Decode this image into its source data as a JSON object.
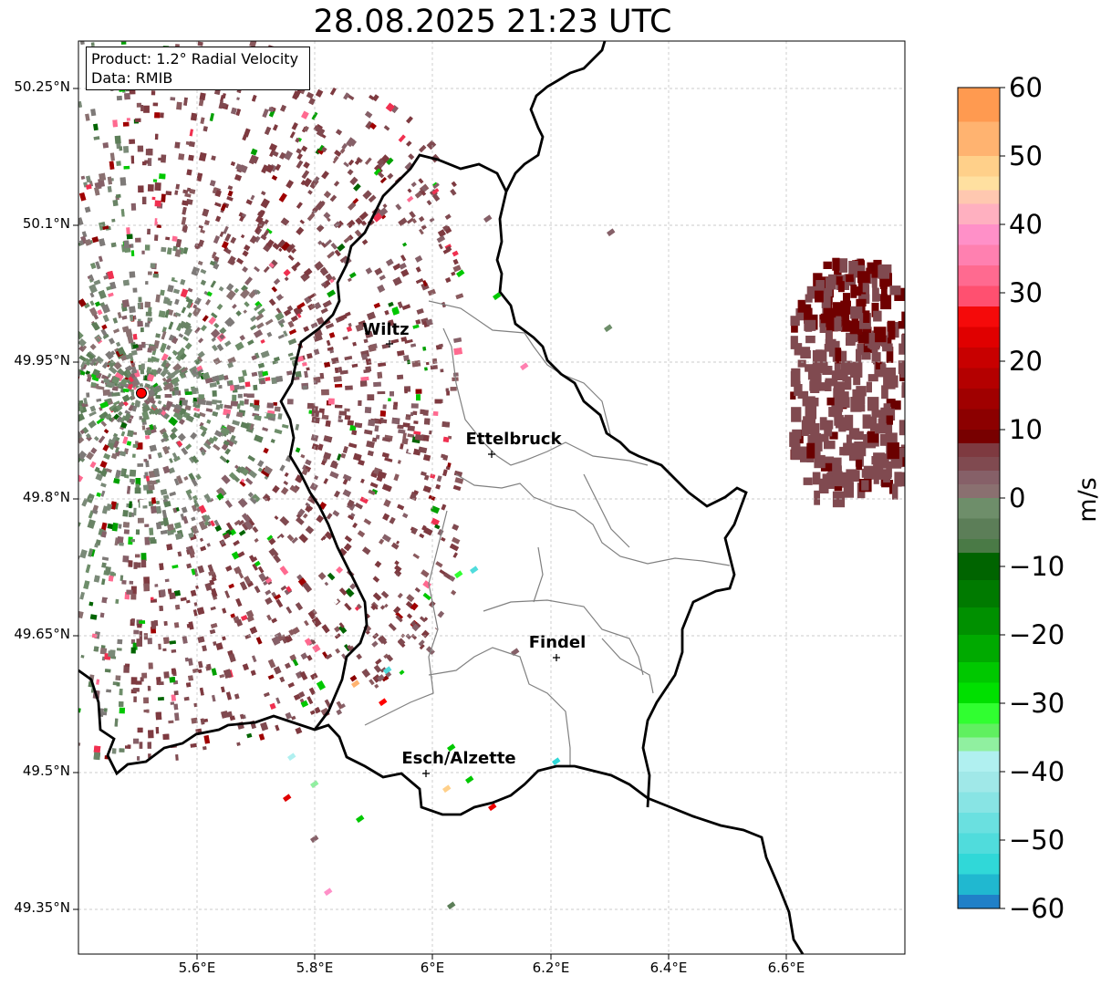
{
  "title": "28.08.2025 21:23 UTC",
  "info_box": {
    "product_line": "Product: 1.2° Radial Velocity",
    "data_line": "Data: RMIB"
  },
  "latitude_labels": [
    "50.25°N",
    "50.1°N",
    "49.95°N",
    "49.8°N",
    "49.65°N",
    "49.5°N",
    "49.35°N"
  ],
  "longitude_labels": [
    "5.6°E",
    "5.8°E",
    "6°E",
    "6.2°E",
    "6.4°E",
    "6.6°E"
  ],
  "cities": [
    {
      "name": "Wiltz"
    },
    {
      "name": "Ettelbruck"
    },
    {
      "name": "Findel"
    },
    {
      "name": "Esch/Alzette"
    }
  ],
  "colorbar": {
    "unit": "m/s",
    "ticks": [
      "60",
      "50",
      "40",
      "30",
      "20",
      "10",
      "0",
      "−10",
      "−20",
      "−30",
      "−40",
      "−50",
      "−60"
    ],
    "min": -60,
    "max": 60
  },
  "colors": {
    "border": "#000000",
    "canton_line": "#808080",
    "grid": "#bbbbbb",
    "radar_site": "#ff0000"
  },
  "icons": [
    "radar-site-icon",
    "city-marker-icon"
  ]
}
